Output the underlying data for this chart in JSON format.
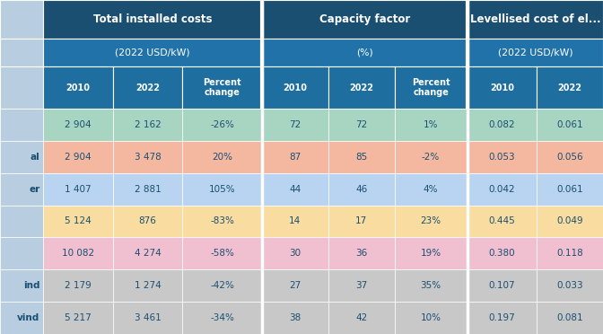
{
  "headers_row1": [
    "Total installed costs",
    "Capacity factor",
    "Levellised cost of el..."
  ],
  "headers_row2": [
    "(2022 USD/kW)",
    "(%)",
    "(2022 USD/kW)"
  ],
  "col_labels": [
    "2010",
    "2022",
    "Percent\nchange",
    "2010",
    "2022",
    "Percent\nchange",
    "2010",
    "2022"
  ],
  "rows": [
    {
      "label": "",
      "bg": "#a8d5c2",
      "data": [
        "2 904",
        "2 162",
        "-26%",
        "72",
        "72",
        "1%",
        "0.082",
        "0.061"
      ]
    },
    {
      "label": "al",
      "bg": "#f4b8a0",
      "data": [
        "2 904",
        "3 478",
        "20%",
        "87",
        "85",
        "-2%",
        "0.053",
        "0.056"
      ]
    },
    {
      "label": "er",
      "bg": "#b8d4f0",
      "data": [
        "1 407",
        "2 881",
        "105%",
        "44",
        "46",
        "4%",
        "0.042",
        "0.061"
      ]
    },
    {
      "label": "",
      "bg": "#f8dca0",
      "data": [
        "5 124",
        "876",
        "-83%",
        "14",
        "17",
        "23%",
        "0.445",
        "0.049"
      ]
    },
    {
      "label": "",
      "bg": "#f0c0d0",
      "data": [
        "10 082",
        "4 274",
        "-58%",
        "30",
        "36",
        "19%",
        "0.380",
        "0.118"
      ]
    },
    {
      "label": "ind",
      "bg": "#c8c8c8",
      "data": [
        "2 179",
        "1 274",
        "-42%",
        "27",
        "37",
        "35%",
        "0.107",
        "0.033"
      ]
    },
    {
      "label": "vind",
      "bg": "#c8c8c8",
      "data": [
        "5 217",
        "3 461",
        "-34%",
        "38",
        "42",
        "10%",
        "0.197",
        "0.081"
      ]
    }
  ],
  "header_bg": "#1a4f72",
  "subheader_bg": "#2172a8",
  "col_header_bg": "#1e6fa0",
  "left_panel_bg": "#b8cee0",
  "cell_text_color": "#1a4f72",
  "white": "#ffffff"
}
